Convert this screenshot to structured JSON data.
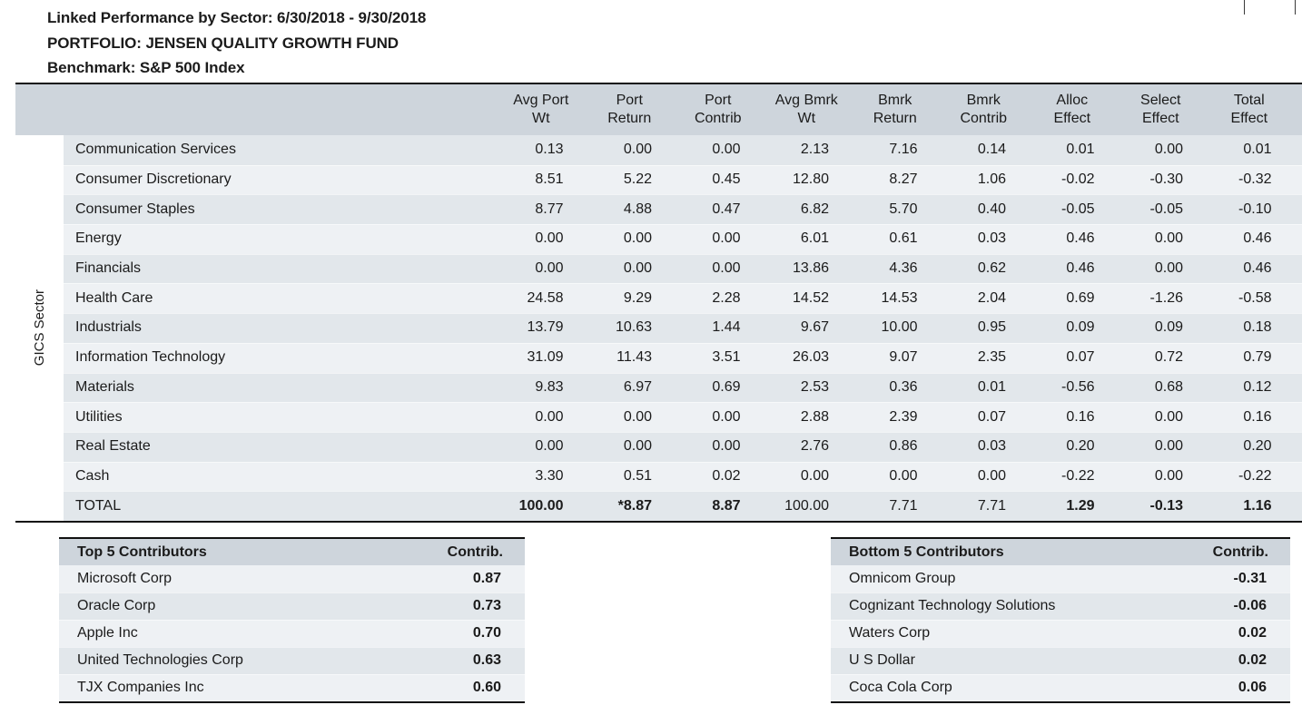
{
  "report_header": {
    "title": "Linked Performance by Sector: 6/30/2018 - 9/30/2018",
    "portfolio": "PORTFOLIO: JENSEN QUALITY GROWTH FUND",
    "benchmark": "Benchmark: S&P 500 Index"
  },
  "attribution_table": {
    "row_axis_label": "GICS Sector",
    "columns": [
      {
        "line1": "Avg Port",
        "line2": "Wt"
      },
      {
        "line1": "Port",
        "line2": "Return"
      },
      {
        "line1": "Port",
        "line2": "Contrib"
      },
      {
        "line1": "Avg Bmrk",
        "line2": "Wt"
      },
      {
        "line1": "Bmrk",
        "line2": "Return"
      },
      {
        "line1": "Bmrk",
        "line2": "Contrib"
      },
      {
        "line1": "Alloc",
        "line2": "Effect"
      },
      {
        "line1": "Select",
        "line2": "Effect"
      },
      {
        "line1": "Total",
        "line2": "Effect"
      }
    ],
    "rows": [
      {
        "sector": "Communication Services",
        "values": [
          "0.13",
          "0.00",
          "0.00",
          "2.13",
          "7.16",
          "0.14",
          "0.01",
          "0.00",
          "0.01"
        ]
      },
      {
        "sector": "Consumer Discretionary",
        "values": [
          "8.51",
          "5.22",
          "0.45",
          "12.80",
          "8.27",
          "1.06",
          "-0.02",
          "-0.30",
          "-0.32"
        ]
      },
      {
        "sector": "Consumer Staples",
        "values": [
          "8.77",
          "4.88",
          "0.47",
          "6.82",
          "5.70",
          "0.40",
          "-0.05",
          "-0.05",
          "-0.10"
        ]
      },
      {
        "sector": "Energy",
        "values": [
          "0.00",
          "0.00",
          "0.00",
          "6.01",
          "0.61",
          "0.03",
          "0.46",
          "0.00",
          "0.46"
        ]
      },
      {
        "sector": "Financials",
        "values": [
          "0.00",
          "0.00",
          "0.00",
          "13.86",
          "4.36",
          "0.62",
          "0.46",
          "0.00",
          "0.46"
        ]
      },
      {
        "sector": "Health Care",
        "values": [
          "24.58",
          "9.29",
          "2.28",
          "14.52",
          "14.53",
          "2.04",
          "0.69",
          "-1.26",
          "-0.58"
        ]
      },
      {
        "sector": "Industrials",
        "values": [
          "13.79",
          "10.63",
          "1.44",
          "9.67",
          "10.00",
          "0.95",
          "0.09",
          "0.09",
          "0.18"
        ]
      },
      {
        "sector": "Information Technology",
        "values": [
          "31.09",
          "11.43",
          "3.51",
          "26.03",
          "9.07",
          "2.35",
          "0.07",
          "0.72",
          "0.79"
        ]
      },
      {
        "sector": "Materials",
        "values": [
          "9.83",
          "6.97",
          "0.69",
          "2.53",
          "0.36",
          "0.01",
          "-0.56",
          "0.68",
          "0.12"
        ]
      },
      {
        "sector": "Utilities",
        "values": [
          "0.00",
          "0.00",
          "0.00",
          "2.88",
          "2.39",
          "0.07",
          "0.16",
          "0.00",
          "0.16"
        ]
      },
      {
        "sector": "Real Estate",
        "values": [
          "0.00",
          "0.00",
          "0.00",
          "2.76",
          "0.86",
          "0.03",
          "0.20",
          "0.00",
          "0.20"
        ]
      },
      {
        "sector": "Cash",
        "values": [
          "3.30",
          "0.51",
          "0.02",
          "0.00",
          "0.00",
          "0.00",
          "-0.22",
          "0.00",
          "-0.22"
        ]
      }
    ],
    "total_row": {
      "label": "TOTAL",
      "values": [
        "100.00",
        "*8.87",
        "8.87",
        "100.00",
        "7.71",
        "7.71",
        "1.29",
        "-0.13",
        "1.16"
      ],
      "bold_mask": [
        true,
        true,
        true,
        false,
        false,
        false,
        true,
        true,
        true
      ]
    }
  },
  "top_contributors": {
    "title": "Top 5 Contributors",
    "value_header": "Contrib.",
    "rows": [
      {
        "name": "Microsoft Corp",
        "value": "0.87"
      },
      {
        "name": "Oracle Corp",
        "value": "0.73"
      },
      {
        "name": "Apple Inc",
        "value": "0.70"
      },
      {
        "name": "United Technologies Corp",
        "value": "0.63"
      },
      {
        "name": "TJX Companies Inc",
        "value": "0.60"
      }
    ]
  },
  "bottom_contributors": {
    "title": "Bottom 5 Contributors",
    "value_header": "Contrib.",
    "rows": [
      {
        "name": "Omnicom Group",
        "value": "-0.31"
      },
      {
        "name": "Cognizant Technology Solutions",
        "value": "-0.06"
      },
      {
        "name": "Waters Corp",
        "value": "0.02"
      },
      {
        "name": "U S Dollar",
        "value": "0.02"
      },
      {
        "name": "Coca Cola Corp",
        "value": "0.06"
      }
    ]
  },
  "colors": {
    "header_band": "#ced5dc",
    "stripe_dark": "#e2e7eb",
    "stripe_light": "#eef1f4",
    "rule": "#111111",
    "text": "#1b1b1b"
  }
}
